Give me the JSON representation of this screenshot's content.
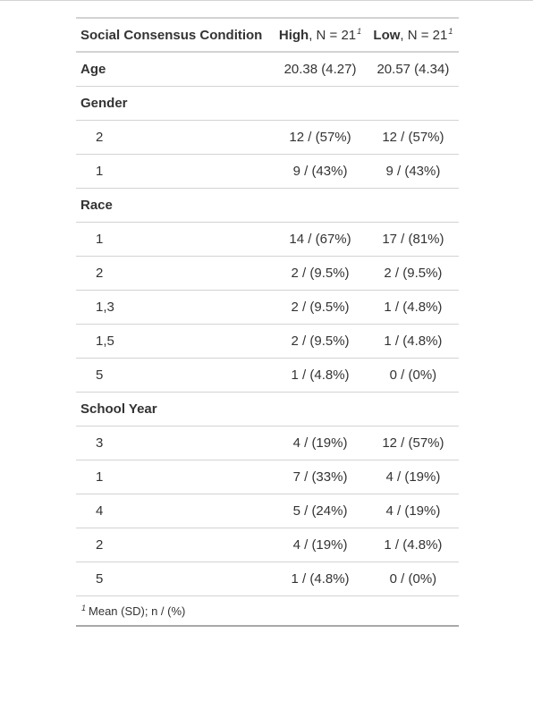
{
  "header": {
    "col1": "Social Consensus Condition",
    "col2": {
      "bold": "High",
      "rest": ", N = 21",
      "mark": "1"
    },
    "col3": {
      "bold": "Low",
      "rest": ", N = 21",
      "mark": "1"
    }
  },
  "rows": [
    {
      "label": "Age",
      "high": "20.38 (4.27)",
      "low": "20.57 (4.34)"
    },
    {
      "label": "Gender"
    },
    {
      "label": "2",
      "high": "12 / (57%)",
      "low": "12 / (57%)"
    },
    {
      "label": "1",
      "high": "9 / (43%)",
      "low": "9 / (43%)"
    },
    {
      "label": "Race"
    },
    {
      "label": "1",
      "high": "14 / (67%)",
      "low": "17 / (81%)"
    },
    {
      "label": "2",
      "high": "2 / (9.5%)",
      "low": "2 / (9.5%)"
    },
    {
      "label": "1,3",
      "high": "2 / (9.5%)",
      "low": "1 / (4.8%)"
    },
    {
      "label": "1,5",
      "high": "2 / (9.5%)",
      "low": "1 / (4.8%)"
    },
    {
      "label": "5",
      "high": "1 / (4.8%)",
      "low": "0 / (0%)"
    },
    {
      "label": "School Year"
    },
    {
      "label": "3",
      "high": "4 / (19%)",
      "low": "12 / (57%)"
    },
    {
      "label": "1",
      "high": "7 / (33%)",
      "low": "4 / (19%)"
    },
    {
      "label": "4",
      "high": "5 / (24%)",
      "low": "4 / (19%)"
    },
    {
      "label": "2",
      "high": "4 / (19%)",
      "low": "1 / (4.8%)"
    },
    {
      "label": "5",
      "high": "1 / (4.8%)",
      "low": "0 / (0%)"
    }
  ],
  "footnote": {
    "mark": "1",
    "text": "Mean (SD); n / (%)"
  }
}
